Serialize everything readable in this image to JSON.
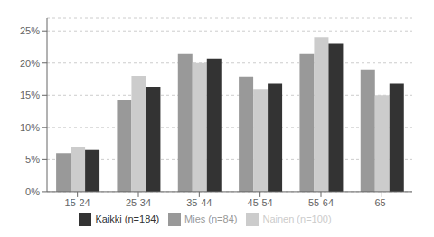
{
  "chart_data": {
    "type": "bar",
    "categories": [
      "15-24",
      "25-34",
      "35-44",
      "45-54",
      "55-64",
      "65-"
    ],
    "series": [
      {
        "name": "Mies (n=84)",
        "color": "#999999",
        "values": [
          6.0,
          14.3,
          21.4,
          17.9,
          21.4,
          19.0
        ]
      },
      {
        "name": "Nainen (n=100)",
        "color": "#cccccc",
        "values": [
          7.0,
          18.0,
          20.0,
          16.0,
          24.0,
          15.0
        ]
      },
      {
        "name": "Kaikki (n=184)",
        "color": "#333333",
        "values": [
          6.5,
          16.3,
          20.7,
          16.8,
          23.0,
          16.8
        ]
      }
    ],
    "ylim": [
      0,
      27
    ],
    "yticks": [
      {
        "value": 0,
        "label": "0%"
      },
      {
        "value": 5,
        "label": "5%"
      },
      {
        "value": 10,
        "label": "10%"
      },
      {
        "value": 15,
        "label": "15%"
      },
      {
        "value": 20,
        "label": "20%"
      },
      {
        "value": 25,
        "label": "25%"
      }
    ],
    "grid": true,
    "legend": "bottom"
  }
}
